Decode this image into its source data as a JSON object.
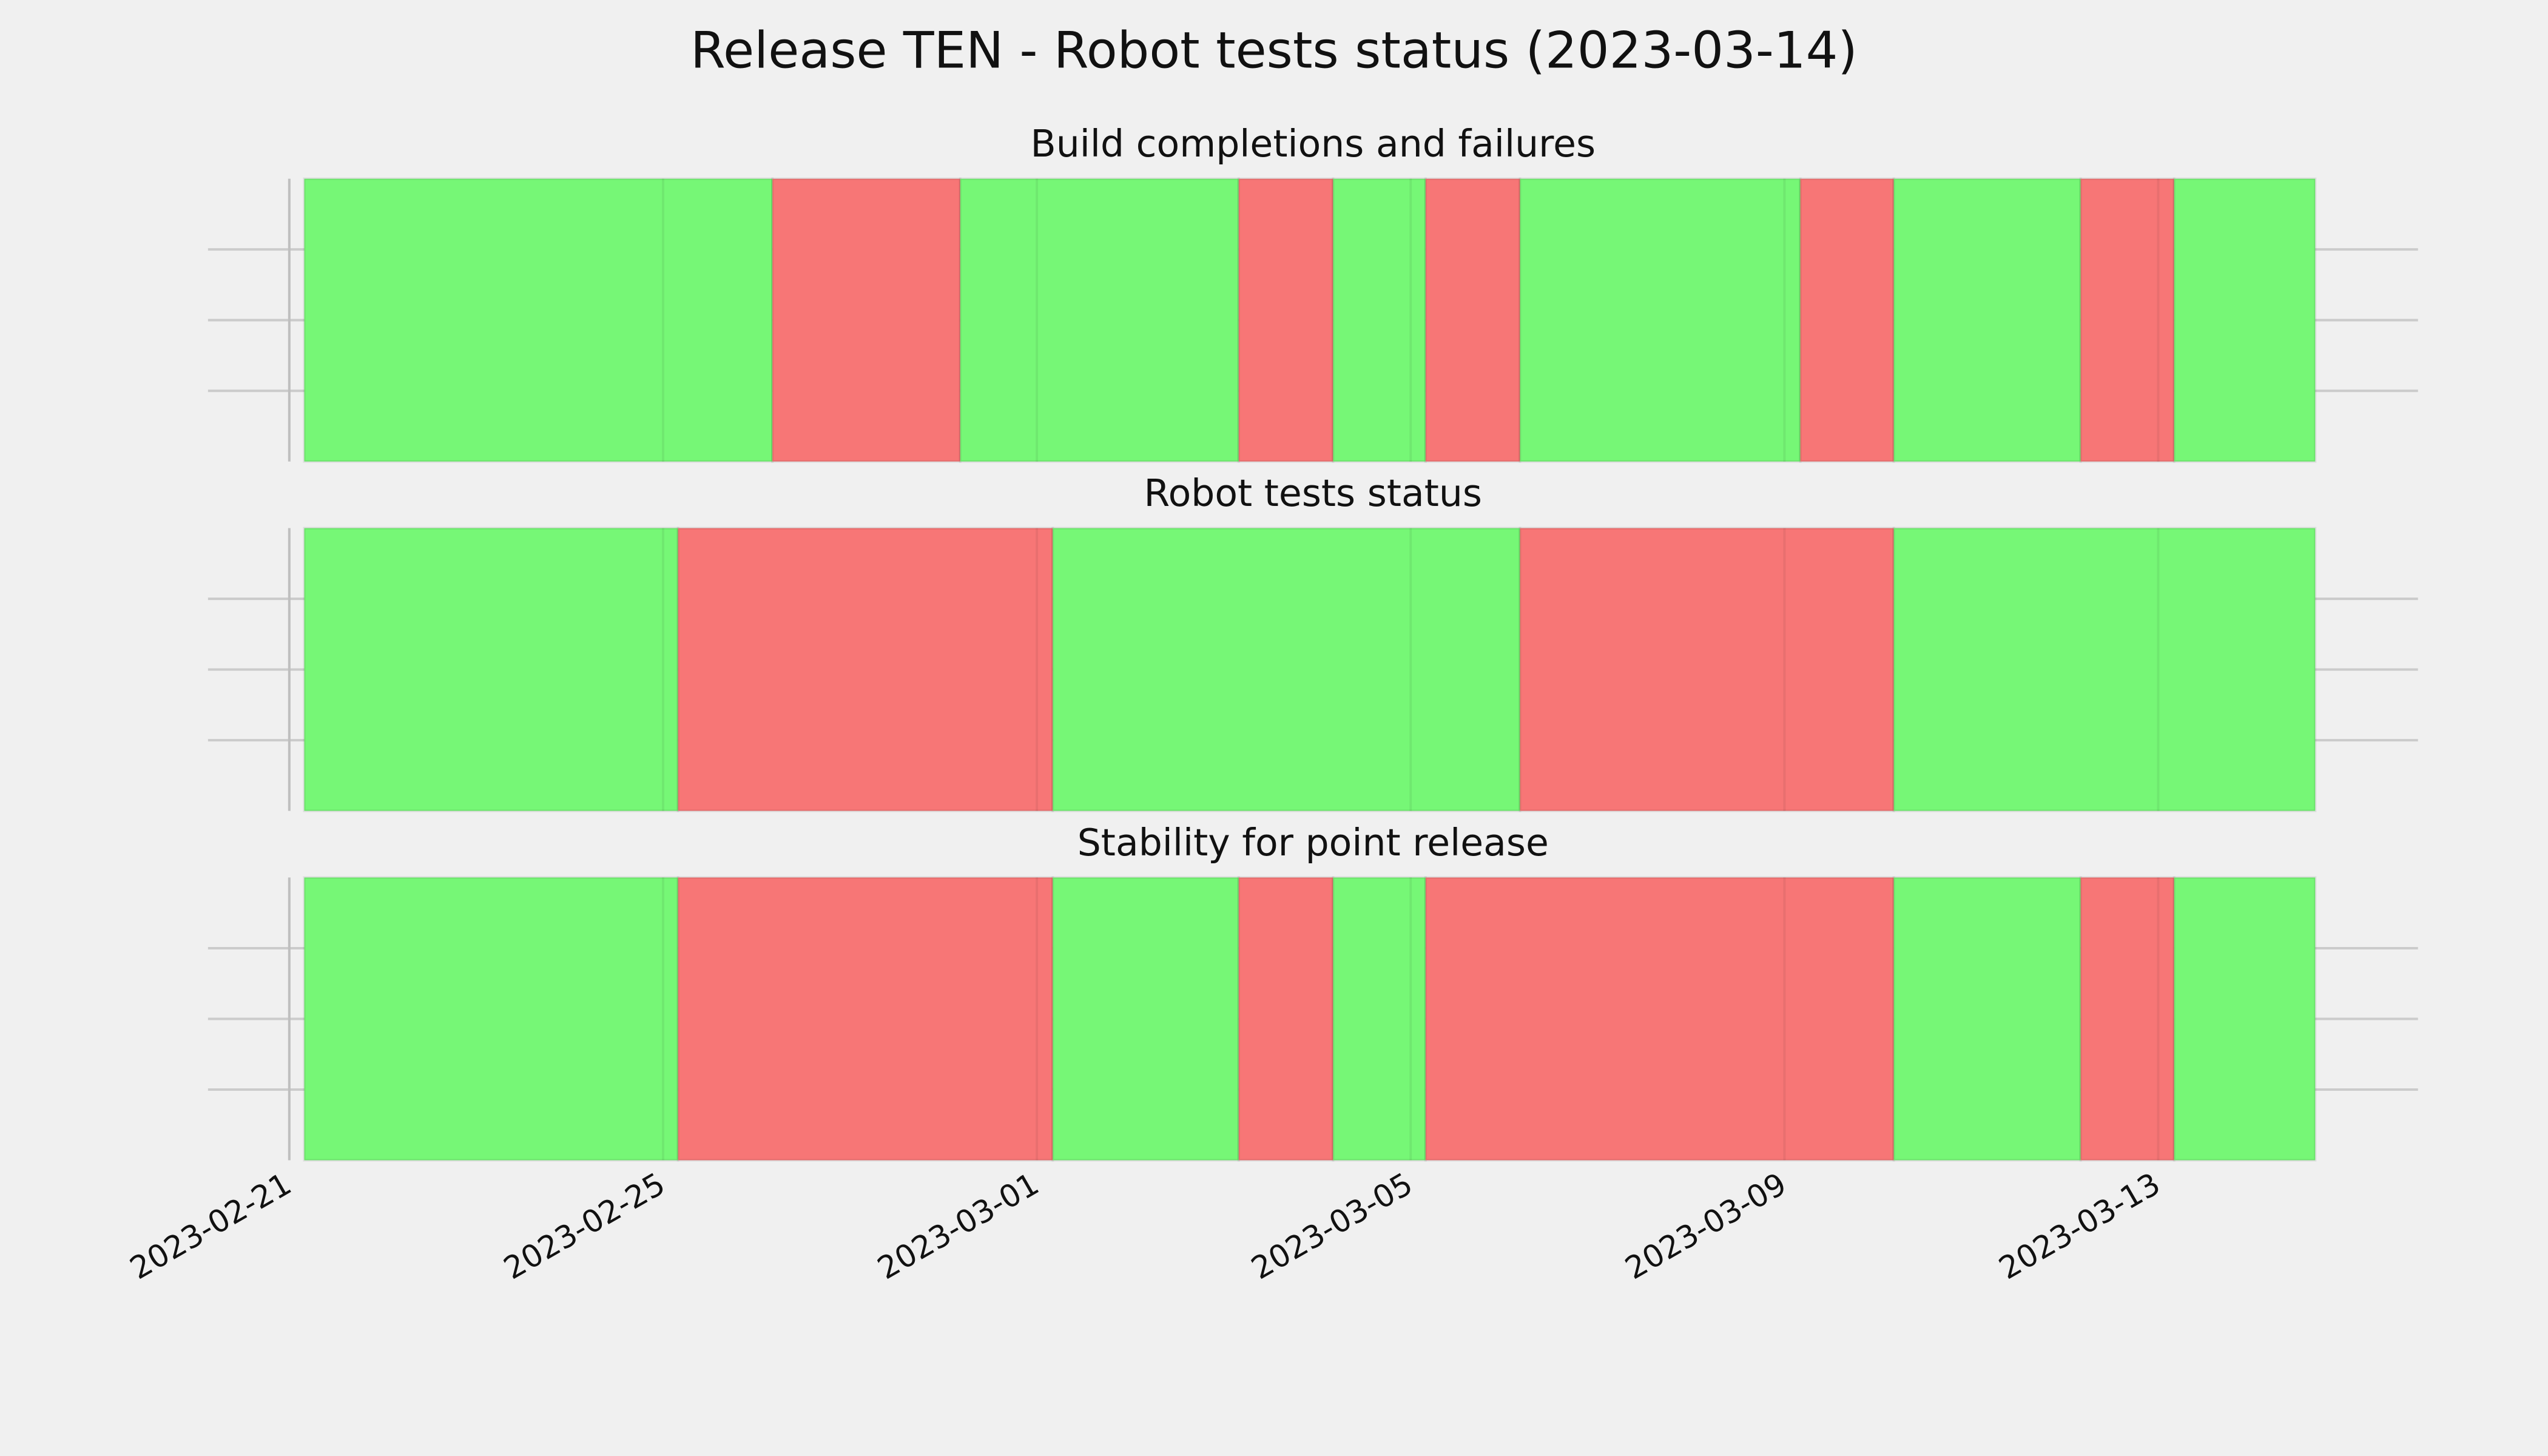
{
  "title": "Release TEN - Robot tests status (2023-03-14)",
  "chart_data": [
    {
      "type": "timeline",
      "title": "Build completions and failures",
      "starts": [
        0.16,
        5.17,
        7.18,
        10.16,
        11.17,
        12.16,
        13.17,
        16.17,
        17.17,
        19.17,
        20.17
      ],
      "ends": [
        5.17,
        7.18,
        10.16,
        11.17,
        12.16,
        13.17,
        16.17,
        17.17,
        19.17,
        20.17,
        21.68
      ],
      "colors": [
        "#76f776",
        "#f77676",
        "#76f776",
        "#f77676",
        "#76f776",
        "#f77676",
        "#76f776",
        "#f77676",
        "#76f776",
        "#f77676",
        "#76f776"
      ],
      "xlim": [
        -0.87,
        22.78
      ],
      "ylim": [
        0,
        1
      ],
      "xticks": [
        {
          "value": 0,
          "label": "2023-02-21"
        },
        {
          "value": 4,
          "label": "2023-02-25"
        },
        {
          "value": 8,
          "label": "2023-03-01"
        },
        {
          "value": 12,
          "label": "2023-03-05"
        },
        {
          "value": 16,
          "label": "2023-03-09"
        },
        {
          "value": 20,
          "label": "2023-03-13"
        }
      ],
      "yticks": [
        0.25,
        0.5,
        0.75
      ],
      "grid": true
    },
    {
      "type": "timeline",
      "title": "Robot tests status",
      "starts": [
        0.16,
        4.16,
        8.17,
        13.17,
        17.17
      ],
      "ends": [
        4.16,
        8.17,
        13.17,
        17.17,
        21.68
      ],
      "colors": [
        "#76f776",
        "#f77676",
        "#76f776",
        "#f77676",
        "#76f776"
      ],
      "xlim": [
        -0.87,
        22.78
      ],
      "ylim": [
        0,
        1
      ],
      "xticks": [
        {
          "value": 0,
          "label": "2023-02-21"
        },
        {
          "value": 4,
          "label": "2023-02-25"
        },
        {
          "value": 8,
          "label": "2023-03-01"
        },
        {
          "value": 12,
          "label": "2023-03-05"
        },
        {
          "value": 16,
          "label": "2023-03-09"
        },
        {
          "value": 20,
          "label": "2023-03-13"
        }
      ],
      "yticks": [
        0.25,
        0.5,
        0.75
      ],
      "grid": true
    },
    {
      "type": "timeline",
      "title": "Stability for point release",
      "starts": [
        0.16,
        4.16,
        8.17,
        10.16,
        11.17,
        12.16,
        17.17,
        19.17,
        20.17
      ],
      "ends": [
        4.16,
        8.17,
        10.16,
        11.17,
        12.16,
        17.17,
        19.17,
        20.17,
        21.68
      ],
      "colors": [
        "#76f776",
        "#f77676",
        "#76f776",
        "#f77676",
        "#76f776",
        "#f77676",
        "#76f776",
        "#f77676",
        "#76f776"
      ],
      "xlim": [
        -0.87,
        22.78
      ],
      "ylim": [
        0,
        1
      ],
      "xticks": [
        {
          "value": 0,
          "label": "2023-02-21"
        },
        {
          "value": 4,
          "label": "2023-02-25"
        },
        {
          "value": 8,
          "label": "2023-03-01"
        },
        {
          "value": 12,
          "label": "2023-03-05"
        },
        {
          "value": 16,
          "label": "2023-03-09"
        },
        {
          "value": 20,
          "label": "2023-03-13"
        }
      ],
      "yticks": [
        0.25,
        0.5,
        0.75
      ],
      "grid": true
    }
  ]
}
